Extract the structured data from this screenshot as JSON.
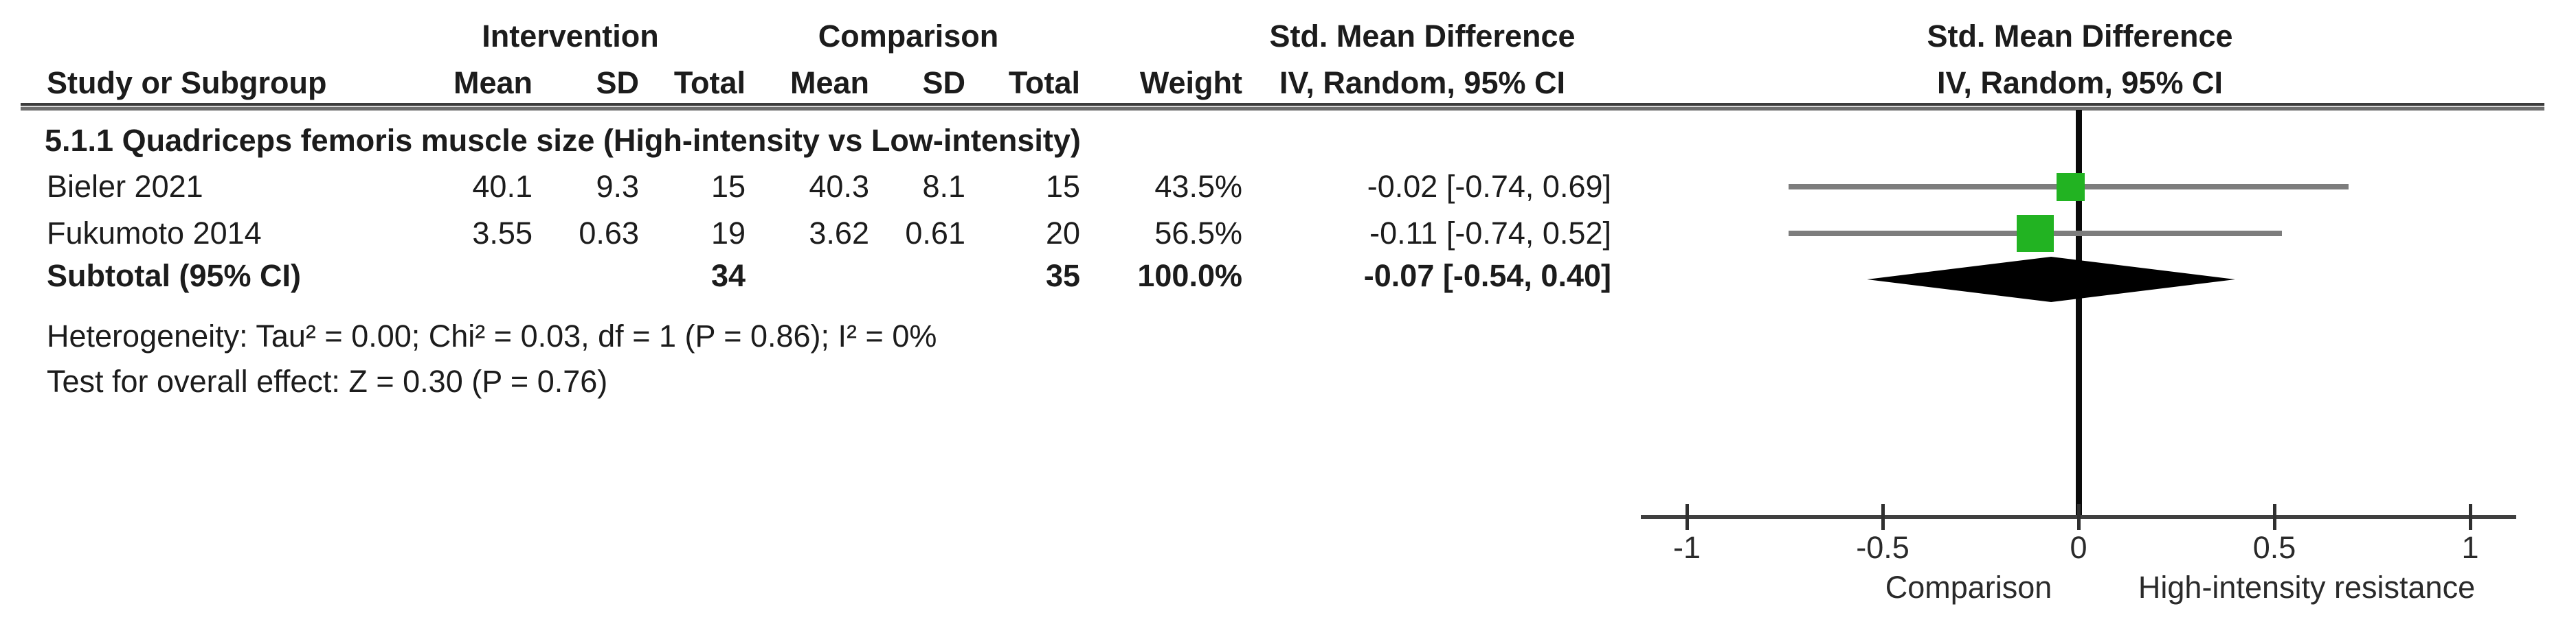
{
  "header": {
    "intervention": "Intervention",
    "comparison": "Comparison",
    "smd_text_col": "Std. Mean Difference",
    "smd_plot_col": "Std. Mean Difference",
    "study_col": "Study or Subgroup",
    "mean": "Mean",
    "sd": "SD",
    "total": "Total",
    "mean2": "Mean",
    "sd2": "SD",
    "total2": "Total",
    "weight": "Weight",
    "iv_text_col": "IV, Random, 95% CI",
    "iv_plot_col": "IV, Random, 95% CI"
  },
  "subgroup_title": "5.1.1 Quadriceps femoris muscle size (High-intensity vs Low-intensity)",
  "rows": [
    {
      "study": "Bieler 2021",
      "i_mean": "40.1",
      "i_sd": "9.3",
      "i_total": "15",
      "c_mean": "40.3",
      "c_sd": "8.1",
      "c_total": "15",
      "weight": "43.5%",
      "effect": "-0.02 [-0.74, 0.69]"
    },
    {
      "study": "Fukumoto 2014",
      "i_mean": "3.55",
      "i_sd": "0.63",
      "i_total": "19",
      "c_mean": "3.62",
      "c_sd": "0.61",
      "c_total": "20",
      "weight": "56.5%",
      "effect": "-0.11 [-0.74, 0.52]"
    }
  ],
  "subtotal": {
    "label": "Subtotal (95% CI)",
    "i_total": "34",
    "c_total": "35",
    "weight": "100.0%",
    "effect": "-0.07 [-0.54, 0.40]"
  },
  "footnotes": {
    "heterogeneity": "Heterogeneity: Tau² = 0.00; Chi² = 0.03, df = 1 (P = 0.86); I² = 0%",
    "overall_effect": "Test for overall effect: Z = 0.30 (P = 0.76)"
  },
  "chart_data": {
    "type": "forest",
    "title": "Std. Mean Difference  IV, Random, 95% CI",
    "x_ticks": [
      -1,
      -0.5,
      0,
      0.5,
      1
    ],
    "xlim": [
      -1.12,
      1.12
    ],
    "studies": [
      {
        "name": "Bieler 2021",
        "est": -0.02,
        "ci_low": -0.74,
        "ci_high": 0.69,
        "weight_pct": 43.5
      },
      {
        "name": "Fukumoto 2014",
        "est": -0.11,
        "ci_low": -0.74,
        "ci_high": 0.52,
        "weight_pct": 56.5
      }
    ],
    "pooled": {
      "label": "Subtotal (95% CI)",
      "est": -0.07,
      "ci_low": -0.54,
      "ci_high": 0.4
    },
    "axis_label_left": "Comparison",
    "axis_label_right": "High-intensity resistance",
    "colors": {
      "marker": "#22B322",
      "ci_line": "#7D7D7D",
      "diamond": "#000000",
      "axis": "#3F3F3F"
    }
  }
}
